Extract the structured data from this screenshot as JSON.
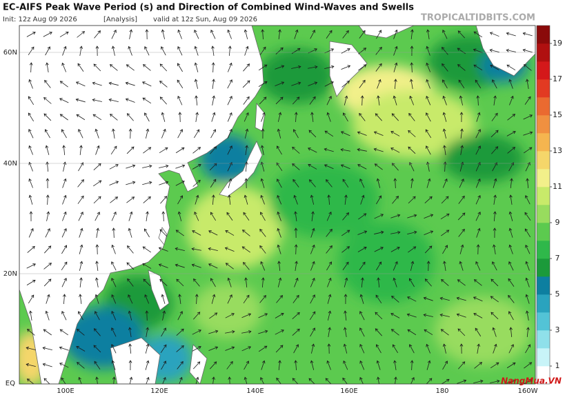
{
  "header": {
    "title": "EC-AIFS Peak Wave Period (s) and Direction of Combined Wind-Waves and Swells",
    "init": "Init: 12z Aug 09 2026",
    "analysis": "[Analysis]",
    "valid": "valid at 12z Sun, Aug 09 2026",
    "site": "TROPICALTIDBITS.COM"
  },
  "map": {
    "lat_labels": [
      "60N",
      "40N",
      "20N",
      "EQ"
    ],
    "lon_labels": [
      "100E",
      "120E",
      "140E",
      "160E",
      "180",
      "160W"
    ]
  },
  "colorbar": {
    "labels": [
      1,
      3,
      5,
      7,
      9,
      11,
      13,
      15,
      17,
      19
    ],
    "colors": [
      "#ffffff",
      "#c8f4f8",
      "#8fe0ea",
      "#53c3d6",
      "#2aa3be",
      "#0d7fa0",
      "#1b9a3a",
      "#2fb84a",
      "#5cca4f",
      "#98dc5e",
      "#c8ea6a",
      "#f2f08a",
      "#f5d66a",
      "#f5b54f",
      "#f09040",
      "#ea6a30",
      "#e23a22",
      "#d4181a",
      "#b01010",
      "#8a0a0a"
    ]
  },
  "watermark": "NangMua.VN"
}
